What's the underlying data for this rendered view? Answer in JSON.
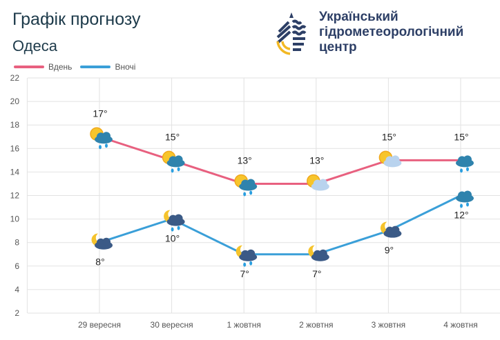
{
  "header": {
    "title": "Графік прогнозу",
    "city": "Одеса"
  },
  "logo": {
    "org_name_lines": [
      "Український",
      "гідрометеорологічний",
      "центр"
    ]
  },
  "chart_data": {
    "type": "line",
    "categories": [
      "29 вересня",
      "30 вересня",
      "1 жовтня",
      "2 жовтня",
      "3 жовтня",
      "4 жовтня"
    ],
    "series": [
      {
        "name": "Вдень",
        "color": "#e8607f",
        "values": [
          17,
          15,
          13,
          13,
          15,
          15
        ],
        "labels": [
          "17°",
          "15°",
          "13°",
          "13°",
          "15°",
          "15°"
        ],
        "icons": [
          "sun-cloud-rain",
          "sun-cloud-rain",
          "sun-cloud-rain",
          "sun-cloud",
          "sun-cloud",
          "cloud-rain"
        ]
      },
      {
        "name": "Вночі",
        "color": "#3a9fd8",
        "values": [
          8,
          10,
          7,
          7,
          9,
          12
        ],
        "labels": [
          "8°",
          "10°",
          "7°",
          "7°",
          "9°",
          "12°"
        ],
        "icons": [
          "moon-cloud",
          "moon-cloud-rain",
          "moon-cloud-rain",
          "moon-cloud",
          "moon-cloud",
          "cloud-rain"
        ]
      }
    ],
    "ylim": [
      2,
      22
    ],
    "yticks": [
      2,
      4,
      6,
      8,
      10,
      12,
      14,
      16,
      18,
      20,
      22
    ],
    "grid": true,
    "legend": "top-left"
  }
}
